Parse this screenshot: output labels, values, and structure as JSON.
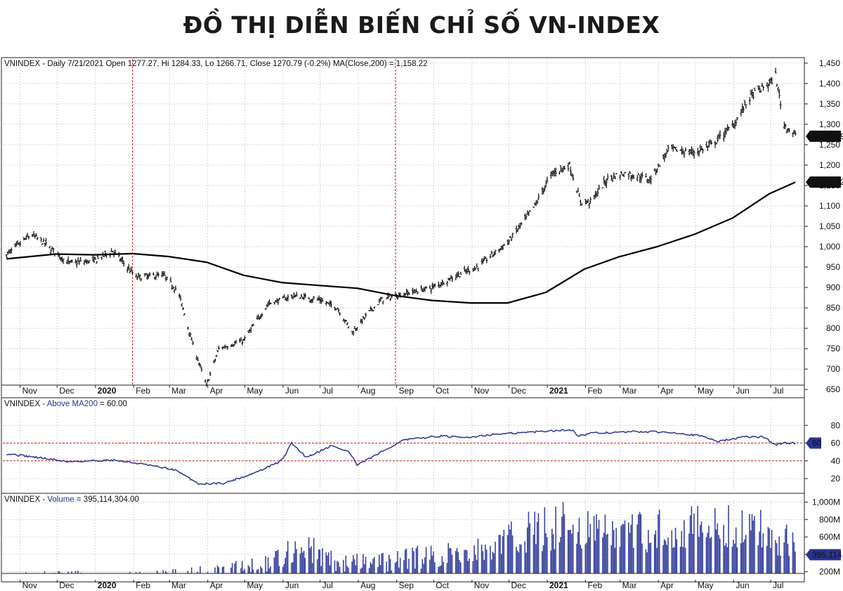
{
  "title": "ĐỒ THỊ DIỄN BIẾN CHỈ SỐ VN-INDEX",
  "colors": {
    "price": "#111111",
    "ma": "#000000",
    "indicator": "#2a3490",
    "volume": "#3b44a0",
    "ref_line": "#cc2222",
    "grid": "#9a9a9a",
    "tag_bg": "#111111",
    "tag_blue": "#2a3490"
  },
  "x_ticks": [
    "Nov",
    "Dec",
    "2020",
    "Feb",
    "Mar",
    "Apr",
    "May",
    "Jun",
    "Jul",
    "Aug",
    "Sep",
    "Oct",
    "Nov",
    "Dec",
    "2021",
    "Feb",
    "Mar",
    "Apr",
    "May",
    "Jun",
    "Jul"
  ],
  "price_panel": {
    "header_prefix": "VNINDEX - Daily 7/21/2021 Open 1277.27, Hi 1284.33, Lo 1266.71, Close 1270.79 (-0.2%) MA(Close,200) = 1,158.22",
    "y_ticks": [
      "650",
      "700",
      "750",
      "800",
      "850",
      "900",
      "950",
      "1,000",
      "1,050",
      "1,100",
      "1,150",
      "1,200",
      "1,250",
      "1,300",
      "1,350",
      "1,400",
      "1,450"
    ],
    "last_close_label": "1,270.79",
    "ma_label": "1,158.22"
  },
  "breadth_panel": {
    "header_ticker": "VNINDEX - ",
    "header_name": "Above MA200",
    "header_value": " = 60.00",
    "y_ticks": [
      "20",
      "40",
      "60",
      "80"
    ],
    "last_label": "60"
  },
  "volume_panel": {
    "header_ticker": "VNINDEX - ",
    "header_name": "Volume",
    "header_value": " = 395,114,304.00",
    "y_ticks": [
      "200M",
      "400M",
      "600M",
      "800M",
      "1,000M"
    ],
    "last_label": "395,114,"
  },
  "chart_data": [
    {
      "type": "line",
      "panel": "price",
      "ylim": [
        640,
        1460
      ],
      "series": [
        {
          "name": "VNINDEX",
          "x": [
            "2019-10-21",
            "2019-11-10",
            "2019-11-20",
            "2019-12-10",
            "2019-12-31",
            "2020-01-15",
            "2020-02-03",
            "2020-02-25",
            "2020-03-08",
            "2020-03-20",
            "2020-03-31",
            "2020-04-10",
            "2020-04-30",
            "2020-05-20",
            "2020-06-10",
            "2020-06-30",
            "2020-07-15",
            "2020-07-27",
            "2020-08-10",
            "2020-08-20",
            "2020-08-31",
            "2020-09-30",
            "2020-10-20",
            "2020-11-05",
            "2020-11-30",
            "2020-12-20",
            "2021-01-05",
            "2021-01-19",
            "2021-01-28",
            "2021-02-05",
            "2021-02-20",
            "2021-03-05",
            "2021-03-25",
            "2021-04-10",
            "2021-04-29",
            "2021-05-15",
            "2021-06-01",
            "2021-06-15",
            "2021-06-30",
            "2021-07-05",
            "2021-07-12",
            "2021-07-21"
          ],
          "y": [
            980,
            1030,
            1010,
            960,
            965,
            990,
            925,
            930,
            890,
            760,
            660,
            750,
            770,
            860,
            880,
            870,
            850,
            790,
            840,
            870,
            880,
            900,
            930,
            950,
            1010,
            1090,
            1180,
            1200,
            1110,
            1110,
            1170,
            1180,
            1165,
            1240,
            1230,
            1250,
            1300,
            1370,
            1400,
            1420,
            1300,
            1271
          ]
        },
        {
          "name": "MA(Close,200)",
          "x": [
            "2019-10-21",
            "2019-11-30",
            "2019-12-31",
            "2020-01-31",
            "2020-02-29",
            "2020-03-31",
            "2020-04-30",
            "2020-05-31",
            "2020-06-30",
            "2020-07-31",
            "2020-08-31",
            "2020-09-30",
            "2020-10-31",
            "2020-11-30",
            "2020-12-31",
            "2021-01-31",
            "2021-02-28",
            "2021-03-31",
            "2021-04-30",
            "2021-05-31",
            "2021-06-30",
            "2021-07-21"
          ],
          "y": [
            970,
            982,
            980,
            983,
            976,
            962,
            930,
            912,
            905,
            898,
            880,
            868,
            862,
            862,
            888,
            945,
            975,
            1000,
            1030,
            1070,
            1130,
            1158
          ]
        }
      ]
    },
    {
      "type": "line",
      "panel": "breadth",
      "ylim": [
        5,
        100
      ],
      "series": [
        {
          "name": "Above MA200",
          "x": [
            "2019-10-21",
            "2019-11-20",
            "2019-12-10",
            "2020-01-15",
            "2020-02-05",
            "2020-03-05",
            "2020-03-25",
            "2020-04-15",
            "2020-05-10",
            "2020-05-31",
            "2020-06-08",
            "2020-06-20",
            "2020-07-10",
            "2020-07-25",
            "2020-07-31",
            "2020-08-20",
            "2020-09-05",
            "2020-10-05",
            "2020-10-25",
            "2020-11-20",
            "2020-12-15",
            "2021-01-05",
            "2021-01-22",
            "2021-01-26",
            "2021-02-05",
            "2021-03-15",
            "2021-04-15",
            "2021-05-05",
            "2021-05-20",
            "2021-06-10",
            "2021-06-25",
            "2021-07-05",
            "2021-07-10",
            "2021-07-21"
          ],
          "y": [
            48,
            43,
            39,
            41,
            37,
            30,
            14,
            15,
            27,
            40,
            60,
            44,
            57,
            50,
            35,
            50,
            63,
            68,
            66,
            70,
            72,
            74,
            75,
            68,
            71,
            73,
            72,
            68,
            62,
            67,
            67,
            58,
            60,
            60
          ]
        }
      ]
    },
    {
      "type": "bar",
      "panel": "volume",
      "ylim": [
        100,
        1020
      ],
      "x": [
        "2019-10",
        "2019-11",
        "2019-12",
        "2020-01",
        "2020-02",
        "2020-03",
        "2020-04",
        "2020-05",
        "2020-06",
        "2020-07",
        "2020-08",
        "2020-09",
        "2020-10",
        "2020-11",
        "2020-12",
        "2021-01",
        "2021-02",
        "2021-03",
        "2021-04",
        "2021-05",
        "2021-06",
        "2021-07"
      ],
      "series": [
        {
          "name": "Volume",
          "values": [
            150,
            150,
            160,
            140,
            160,
            180,
            230,
            280,
            520,
            300,
            310,
            370,
            410,
            470,
            660,
            780,
            650,
            660,
            740,
            710,
            720,
            600
          ]
        }
      ]
    }
  ]
}
